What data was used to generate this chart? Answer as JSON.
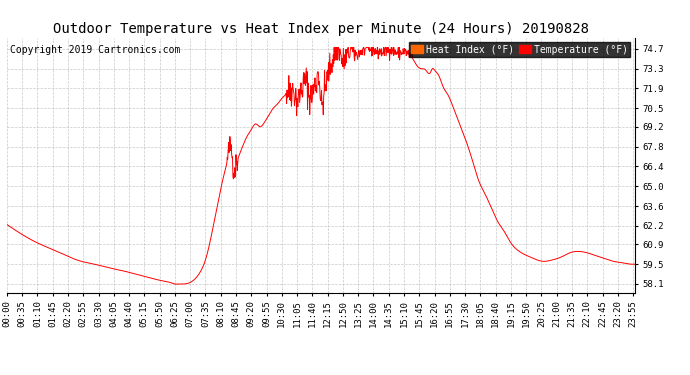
{
  "title": "Outdoor Temperature vs Heat Index per Minute (24 Hours) 20190828",
  "copyright": "Copyright 2019 Cartronics.com",
  "legend_labels": [
    "Heat Index (°F)",
    "Temperature (°F)"
  ],
  "legend_colors": [
    "#FF6600",
    "#FF0000"
  ],
  "line_color": "#FF0000",
  "ylim": [
    57.5,
    75.5
  ],
  "yticks": [
    58.1,
    59.5,
    60.9,
    62.2,
    63.6,
    65.0,
    66.4,
    67.8,
    69.2,
    70.5,
    71.9,
    73.3,
    74.7
  ],
  "bg_color": "#FFFFFF",
  "grid_color": "#BBBBBB",
  "title_fontsize": 10,
  "copyright_fontsize": 7,
  "tick_fontsize": 6.5,
  "legend_fontsize": 7
}
